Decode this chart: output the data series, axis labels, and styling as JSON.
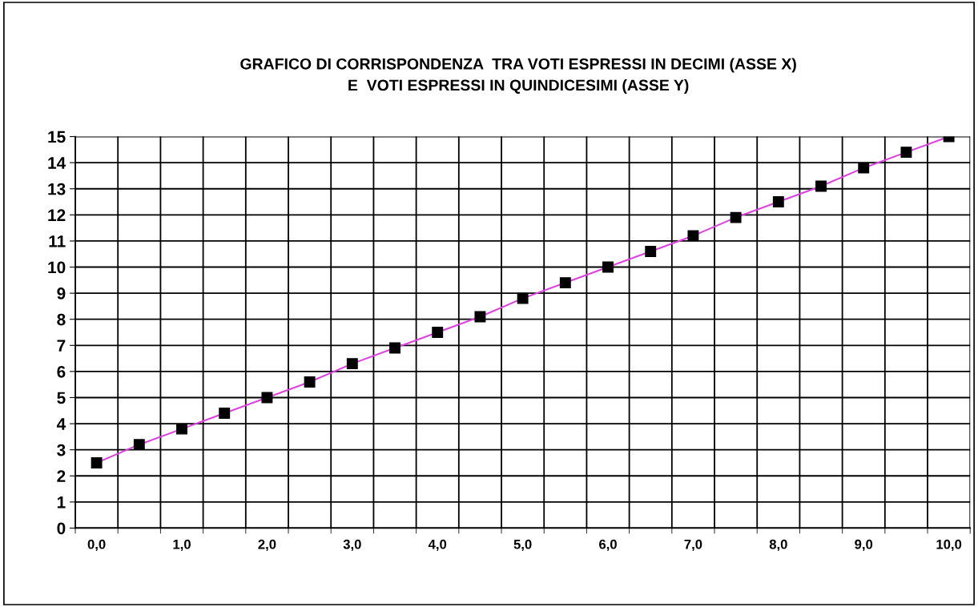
{
  "chart_data": {
    "type": "line",
    "title": "GRAFICO DI CORRISPONDENZA  TRA VOTI ESPRESSI IN DECIMI (ASSE X)\nE  VOTI ESPRESSI IN QUINDICESIMI (ASSE Y)",
    "categories": [
      "0,0",
      null,
      "1,0",
      null,
      "2,0",
      null,
      "3,0",
      null,
      "4,0",
      null,
      "5,0",
      null,
      "6,0",
      null,
      "7,0",
      null,
      "8,0",
      null,
      "9,0",
      null,
      "10,0"
    ],
    "series": [
      {
        "color": "#e040e0",
        "values": [
          2.5,
          3.2,
          3.8,
          4.4,
          5.0,
          5.6,
          6.3,
          6.9,
          7.5,
          8.1,
          8.8,
          9.4,
          10.0,
          10.6,
          11.2,
          11.9,
          12.5,
          13.1,
          13.8,
          14.4,
          15.0
        ]
      }
    ],
    "ylim": [
      0,
      15
    ],
    "yticks": [
      0,
      1,
      2,
      3,
      4,
      5,
      6,
      7,
      8,
      9,
      10,
      11,
      12,
      13,
      14,
      15
    ],
    "grid": true,
    "marker": "square",
    "line_style": "solid"
  }
}
